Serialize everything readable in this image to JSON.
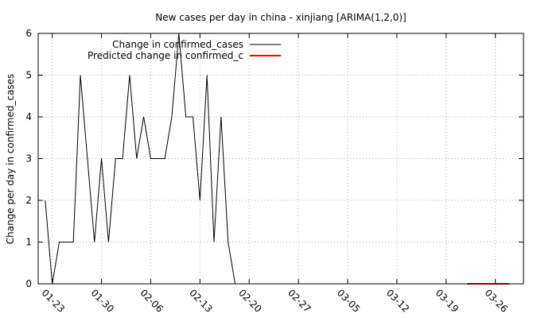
{
  "chart_data": {
    "type": "line",
    "title": "New cases per day in china - xinjiang [ARIMA(1,2,0)]",
    "xlabel": "",
    "ylabel": "Change per day in confirmed_cases",
    "ylim": [
      0,
      6
    ],
    "y_ticks": [
      "0",
      "1",
      "2",
      "3",
      "4",
      "5",
      "6"
    ],
    "x_ticks": [
      {
        "label": "01-23",
        "date": "2020-01-23"
      },
      {
        "label": "01-30",
        "date": "2020-01-30"
      },
      {
        "label": "02-06",
        "date": "2020-02-06"
      },
      {
        "label": "02-13",
        "date": "2020-02-13"
      },
      {
        "label": "02-20",
        "date": "2020-02-20"
      },
      {
        "label": "02-27",
        "date": "2020-02-27"
      },
      {
        "label": "03-05",
        "date": "2020-03-05"
      },
      {
        "label": "03-12",
        "date": "2020-03-12"
      },
      {
        "label": "03-19",
        "date": "2020-03-19"
      },
      {
        "label": "03-26",
        "date": "2020-03-26"
      }
    ],
    "xlim": [
      "2020-01-21",
      "2020-03-30"
    ],
    "grid": true,
    "legend_position": "top-left",
    "series": [
      {
        "name": "Change in confirmed_cases",
        "color": "#000000",
        "points": [
          [
            "2020-01-22",
            2
          ],
          [
            "2020-01-23",
            0
          ],
          [
            "2020-01-24",
            1
          ],
          [
            "2020-01-25",
            1
          ],
          [
            "2020-01-26",
            1
          ],
          [
            "2020-01-27",
            5
          ],
          [
            "2020-01-28",
            3
          ],
          [
            "2020-01-29",
            1
          ],
          [
            "2020-01-30",
            3
          ],
          [
            "2020-01-31",
            1
          ],
          [
            "2020-02-01",
            3
          ],
          [
            "2020-02-02",
            3
          ],
          [
            "2020-02-03",
            5
          ],
          [
            "2020-02-04",
            3
          ],
          [
            "2020-02-05",
            4
          ],
          [
            "2020-02-06",
            3
          ],
          [
            "2020-02-07",
            3
          ],
          [
            "2020-02-08",
            3
          ],
          [
            "2020-02-09",
            4
          ],
          [
            "2020-02-10",
            6
          ],
          [
            "2020-02-11",
            4
          ],
          [
            "2020-02-12",
            4
          ],
          [
            "2020-02-13",
            2
          ],
          [
            "2020-02-14",
            5
          ],
          [
            "2020-02-15",
            1
          ],
          [
            "2020-02-16",
            4
          ],
          [
            "2020-02-17",
            1
          ],
          [
            "2020-02-18",
            0
          ]
        ]
      },
      {
        "name": "Predicted change in confirmed_c",
        "color": "#ff0000",
        "points": [
          [
            "2020-03-22",
            0
          ],
          [
            "2020-03-23",
            0
          ],
          [
            "2020-03-24",
            0
          ],
          [
            "2020-03-25",
            0
          ],
          [
            "2020-03-26",
            0
          ],
          [
            "2020-03-27",
            0
          ],
          [
            "2020-03-28",
            0
          ]
        ]
      }
    ]
  }
}
